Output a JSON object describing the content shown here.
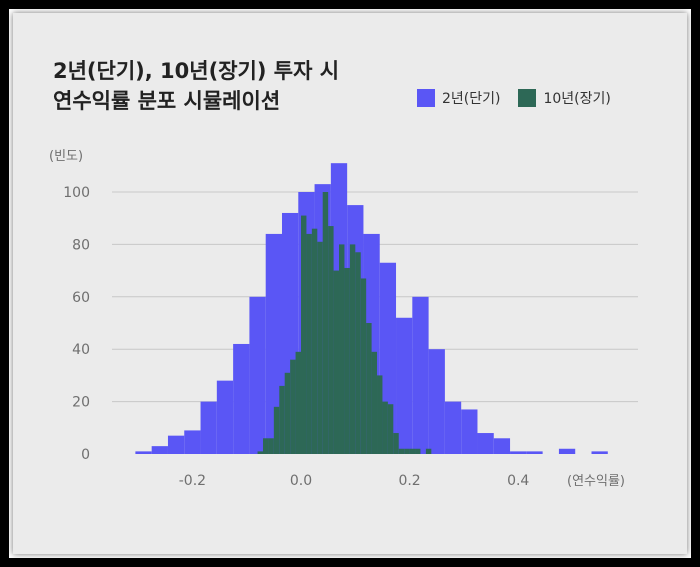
{
  "title_lines": [
    "2년(단기), 10년(장기) 투자 시",
    "연수익률 분포 시뮬레이션"
  ],
  "colors": {
    "background": "#ebebeb",
    "series_short": "#5a56f5",
    "series_long": "#2d6856",
    "grid": "#c8c8c8"
  },
  "chart_data": {
    "type": "bar",
    "title": "2년(단기), 10년(장기) 투자 시 연수익률 분포 시뮬레이션",
    "xlabel": "(연수익률)",
    "ylabel": "(빈도)",
    "xlim": [
      -0.32,
      0.6
    ],
    "ylim": [
      0,
      115
    ],
    "x_ticks": [
      -0.2,
      0.0,
      0.2,
      0.4
    ],
    "x_tick_labels": [
      "-0.2",
      "0.0",
      "0.2",
      "0.4"
    ],
    "y_ticks": [
      0,
      20,
      40,
      60,
      80,
      100
    ],
    "grid": true,
    "legend_position": "top-right",
    "series": [
      {
        "name": "2년(단기)",
        "bin_width": 0.03,
        "bins": [
          [
            -0.29,
            1
          ],
          [
            -0.26,
            3
          ],
          [
            -0.23,
            7
          ],
          [
            -0.2,
            9
          ],
          [
            -0.17,
            20
          ],
          [
            -0.14,
            28
          ],
          [
            -0.11,
            42
          ],
          [
            -0.08,
            60
          ],
          [
            -0.05,
            84
          ],
          [
            -0.02,
            92
          ],
          [
            0.01,
            100
          ],
          [
            0.04,
            103
          ],
          [
            0.07,
            111
          ],
          [
            0.1,
            95
          ],
          [
            0.13,
            84
          ],
          [
            0.16,
            73
          ],
          [
            0.19,
            52
          ],
          [
            0.22,
            60
          ],
          [
            0.25,
            40
          ],
          [
            0.28,
            20
          ],
          [
            0.31,
            17
          ],
          [
            0.34,
            8
          ],
          [
            0.37,
            6
          ],
          [
            0.4,
            1
          ],
          [
            0.43,
            1
          ],
          [
            0.49,
            2
          ],
          [
            0.55,
            1
          ]
        ]
      },
      {
        "name": "10년(장기)",
        "bin_width": 0.01,
        "bins": [
          [
            -0.075,
            1
          ],
          [
            -0.065,
            6
          ],
          [
            -0.055,
            6
          ],
          [
            -0.045,
            18
          ],
          [
            -0.035,
            26
          ],
          [
            -0.025,
            31
          ],
          [
            -0.015,
            36
          ],
          [
            -0.005,
            39
          ],
          [
            0.005,
            91
          ],
          [
            0.015,
            84
          ],
          [
            0.025,
            86
          ],
          [
            0.035,
            81
          ],
          [
            0.045,
            100
          ],
          [
            0.055,
            87
          ],
          [
            0.065,
            70
          ],
          [
            0.075,
            80
          ],
          [
            0.085,
            71
          ],
          [
            0.095,
            80
          ],
          [
            0.105,
            77
          ],
          [
            0.115,
            67
          ],
          [
            0.125,
            50
          ],
          [
            0.135,
            39
          ],
          [
            0.145,
            30
          ],
          [
            0.155,
            20
          ],
          [
            0.165,
            19
          ],
          [
            0.175,
            8
          ],
          [
            0.185,
            2
          ],
          [
            0.195,
            2
          ],
          [
            0.205,
            2
          ],
          [
            0.215,
            2
          ],
          [
            0.235,
            2
          ]
        ]
      }
    ]
  }
}
